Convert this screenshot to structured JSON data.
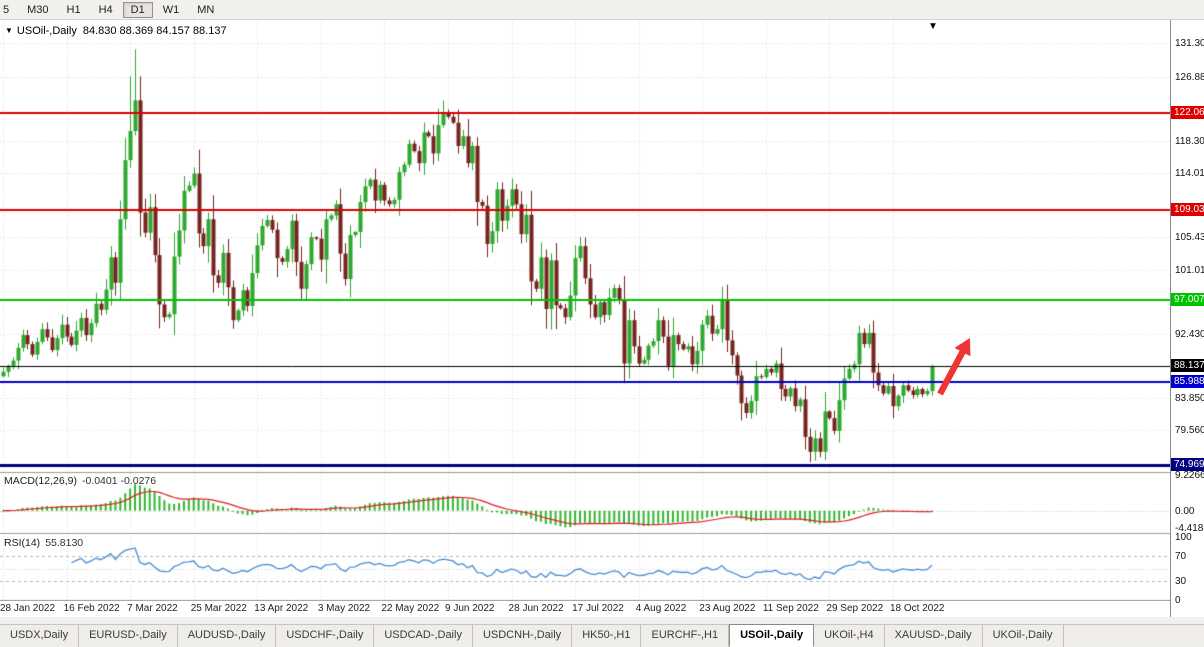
{
  "toolbar": {
    "timeframes": [
      "5",
      "M30",
      "H1",
      "H4",
      "D1",
      "W1",
      "MN"
    ],
    "active_timeframe": "D1"
  },
  "chart": {
    "symbol": "USOil-,Daily",
    "ohlc_text": "84.830 88.369 84.157 88.137",
    "current_price": "88.137"
  },
  "price_axis": {
    "tick_labels": [
      "131.30",
      "126.88",
      "118.30",
      "114.01",
      "105.43",
      "101.01",
      "92.430",
      "83.850",
      "79.560"
    ]
  },
  "hlines": [
    {
      "price": 122.06,
      "label": "122.06",
      "color": "#dd0000",
      "width": 2
    },
    {
      "price": 109.03,
      "label": "109.03",
      "color": "#dd0000",
      "width": 2
    },
    {
      "price": 97.007,
      "label": "97.007",
      "color": "#00c400",
      "width": 2
    },
    {
      "price": 88.137,
      "label": "88.137",
      "color": "#000000",
      "width": 1
    },
    {
      "price": 85.988,
      "label": "85.988",
      "color": "#0000cc",
      "width": 2
    },
    {
      "price": 74.969,
      "label": "74.969",
      "color": "#000080",
      "width": 3
    }
  ],
  "indicators": {
    "macd": {
      "title": "MACD(12,26,9)",
      "values_text": "-0.0401 -0.0276",
      "axis_labels": [
        "9.2266",
        "0.00",
        "-4.4188"
      ],
      "fast": 12,
      "slow": 26,
      "signal": 9
    },
    "rsi": {
      "title": "RSI(14)",
      "value_text": "55.8130",
      "axis_labels": [
        "100",
        "70",
        "30",
        "0"
      ],
      "period": 14,
      "levels": [
        70,
        30
      ]
    }
  },
  "time_axis": {
    "labels": [
      "28 Jan 2022",
      "16 Feb 2022",
      "7 Mar 2022",
      "25 Mar 2022",
      "13 Apr 2022",
      "3 May 2022",
      "22 May 2022",
      "9 Jun 2022",
      "28 Jun 2022",
      "17 Jul 2022",
      "4 Aug 2022",
      "23 Aug 2022",
      "11 Sep 2022",
      "29 Sep 2022",
      "18 Oct 2022"
    ],
    "step": 13
  },
  "tabs": {
    "items": [
      "USDX,Daily",
      "EURUSD-,Daily",
      "AUDUSD-,Daily",
      "USDCHF-,Daily",
      "USDCAD-,Daily",
      "USDCNH-,Daily",
      "HK50-,H1",
      "EURCHF-,H1",
      "USOil-,Daily",
      "UKOil-,H4",
      "XAUUSD-,Daily",
      "UKOil-,Daily"
    ],
    "active": "USOil-,Daily"
  },
  "annotations": {
    "arrow": {
      "color": "#ef3434",
      "direction": "up"
    }
  },
  "colors": {
    "bull": "#2fa82f",
    "bear": "#772420",
    "macd_hist": "#33b533",
    "macd_signal": "#e02020",
    "rsi_line": "#4a8bd4",
    "grid": "#dcdcdc",
    "separator": "#9b9b9b"
  },
  "chart_data": {
    "type": "candlestick",
    "symbol": "USOil",
    "timeframe": "Daily",
    "last_candle": {
      "open": 84.83,
      "high": 88.369,
      "low": 84.157,
      "close": 88.137
    },
    "price_range": [
      74.0,
      132.3
    ],
    "first_open": 86.8,
    "closes": [
      87.4,
      88.2,
      88.9,
      90.6,
      92.3,
      91.1,
      89.7,
      91.4,
      93.1,
      92.0,
      90.3,
      91.9,
      93.7,
      92.1,
      91.0,
      92.9,
      94.6,
      92.3,
      93.9,
      96.5,
      95.7,
      98.4,
      102.7,
      99.3,
      107.8,
      115.7,
      119.6,
      123.7,
      108.7,
      106.0,
      109.4,
      103.0,
      96.4,
      94.7,
      95.1,
      102.8,
      106.3,
      111.6,
      112.3,
      113.9,
      105.9,
      104.2,
      107.8,
      100.3,
      99.3,
      103.3,
      98.7,
      94.3,
      95.6,
      98.3,
      96.2,
      100.6,
      104.3,
      106.9,
      107.7,
      106.4,
      102.6,
      102.1,
      103.8,
      107.6,
      102.1,
      98.5,
      101.8,
      105.4,
      105.2,
      102.4,
      107.8,
      108.3,
      109.8,
      103.2,
      99.8,
      105.7,
      106.1,
      110.1,
      112.2,
      113.1,
      110.3,
      112.4,
      110.3,
      109.8,
      110.4,
      114.1,
      115.1,
      117.9,
      116.9,
      115.3,
      119.4,
      118.9,
      116.6,
      120.4,
      122.1,
      121.5,
      120.7,
      117.6,
      118.9,
      115.3,
      117.6,
      110.1,
      109.6,
      104.5,
      106.2,
      111.8,
      107.6,
      109.6,
      111.8,
      109.8,
      105.8,
      108.4,
      99.5,
      98.5,
      102.7,
      95.8,
      102.3,
      96.3,
      95.9,
      94.7,
      97.6,
      102.6,
      104.2,
      99.9,
      96.4,
      94.7,
      96.7,
      95.0,
      97.3,
      98.6,
      97.0,
      88.5,
      94.3,
      90.8,
      88.5,
      89.0,
      90.9,
      91.5,
      94.3,
      92.1,
      88.2,
      92.3,
      91.1,
      90.4,
      90.8,
      88.4,
      90.2,
      93.7,
      94.9,
      92.5,
      93.1,
      97.0,
      91.6,
      89.6,
      86.9,
      83.2,
      81.9,
      83.5,
      86.8,
      86.7,
      87.8,
      87.3,
      88.5,
      85.1,
      84.1,
      85.2,
      82.8,
      83.7,
      78.7,
      76.7,
      78.5,
      76.7,
      82.1,
      81.2,
      79.5,
      83.6,
      86.5,
      87.8,
      88.4,
      92.6,
      91.1,
      92.6,
      87.3,
      85.6,
      84.5,
      85.5,
      82.8,
      84.2,
      85.6,
      84.9,
      84.3,
      85.1,
      84.4,
      84.83,
      88.137
    ],
    "wick_overrides": {
      "26": [
        126.9,
        null
      ],
      "27": [
        130.5,
        null
      ],
      "90": [
        123.68,
        null
      ],
      "165": [
        null,
        75.3
      ],
      "190": [
        88.369,
        84.157
      ]
    }
  }
}
